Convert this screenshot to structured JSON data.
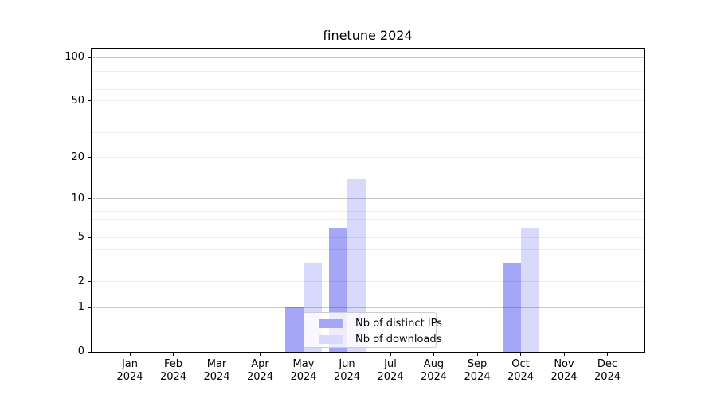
{
  "chart_data": {
    "type": "bar",
    "title": "finetune 2024",
    "categories": [
      "Jan 2024",
      "Feb 2024",
      "Mar 2024",
      "Apr 2024",
      "May 2024",
      "Jun 2024",
      "Jul 2024",
      "Aug 2024",
      "Sep 2024",
      "Oct 2024",
      "Nov 2024",
      "Dec 2024"
    ],
    "x": {
      "months": [
        "Jan",
        "Feb",
        "Mar",
        "Apr",
        "May",
        "Jun",
        "Jul",
        "Aug",
        "Sep",
        "Oct",
        "Nov",
        "Dec"
      ],
      "year": "2024"
    },
    "series": [
      {
        "name": "Nb of distinct IPs",
        "values": [
          0,
          0,
          0,
          0,
          1,
          6,
          0,
          0,
          0,
          3,
          0,
          0
        ],
        "color": "#a6a6f7",
        "fill": "rgba(0,0,230,0.35)"
      },
      {
        "name": "Nb of downloads",
        "values": [
          0,
          0,
          0,
          0,
          3,
          14,
          0,
          0,
          0,
          6,
          0,
          0
        ],
        "color": "#d9d9fa",
        "fill": "rgba(0,0,230,0.15)"
      }
    ],
    "y_axis": {
      "scale": "log1p",
      "ticks": [
        0,
        1,
        2,
        5,
        10,
        20,
        50,
        100
      ],
      "major_gridlines": [
        1,
        10,
        100
      ],
      "minor_gridlines": [
        2,
        3,
        4,
        5,
        6,
        7,
        8,
        9,
        20,
        30,
        40,
        50,
        60,
        70,
        80,
        90
      ],
      "ylim": [
        0,
        115
      ]
    },
    "legend": {
      "position": "lower center",
      "entries": [
        "Nb of distinct IPs",
        "Nb of downloads"
      ]
    },
    "grid": true,
    "colors": {
      "major_grid": "#c9c9c9",
      "minor_grid": "#ececec",
      "axis": "#000000",
      "background": "#ffffff"
    }
  }
}
